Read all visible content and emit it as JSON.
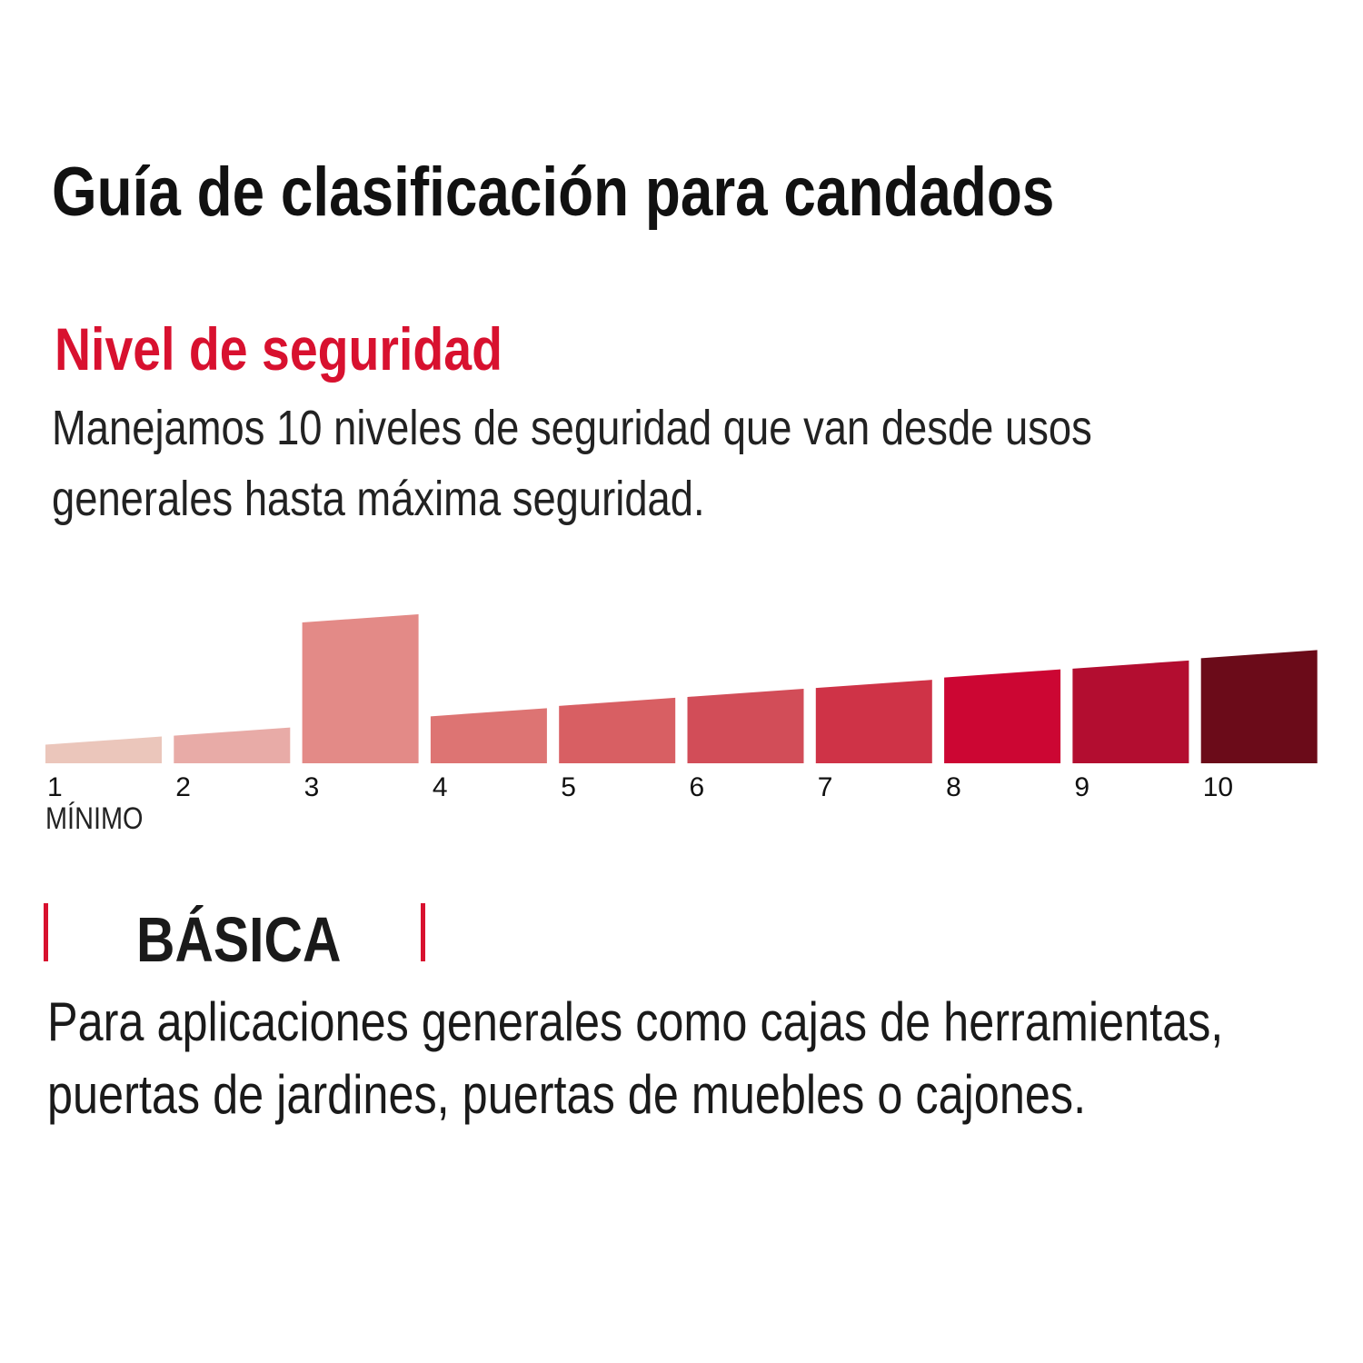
{
  "title": "Guía de clasificación para candados",
  "subtitle": "Nivel de seguridad",
  "description": [
    "Manejamos 10 niveles de seguridad que van desde usos",
    "generales hasta máxima seguridad."
  ],
  "chart_data": {
    "type": "bar",
    "categories": [
      "1",
      "2",
      "3",
      "4",
      "5",
      "6",
      "7",
      "8",
      "9",
      "10"
    ],
    "values": [
      18,
      24,
      100,
      37,
      44,
      50,
      56,
      63,
      69,
      76
    ],
    "colors": [
      "#ebc6bb",
      "#e8aba7",
      "#e38a87",
      "#dd7473",
      "#d85f63",
      "#d24d58",
      "#cf3347",
      "#cc0633",
      "#b30d30",
      "#6b0b19"
    ],
    "highlighted_level": "3",
    "min_label": "MÍNIMO",
    "axes_visible": false,
    "grid": false
  },
  "level": {
    "name": "BÁSICA",
    "accent": "#d8112f",
    "description": [
      "Para aplicaciones generales como cajas de herramientas,",
      "puertas de jardines, puertas de muebles o cajones."
    ]
  }
}
